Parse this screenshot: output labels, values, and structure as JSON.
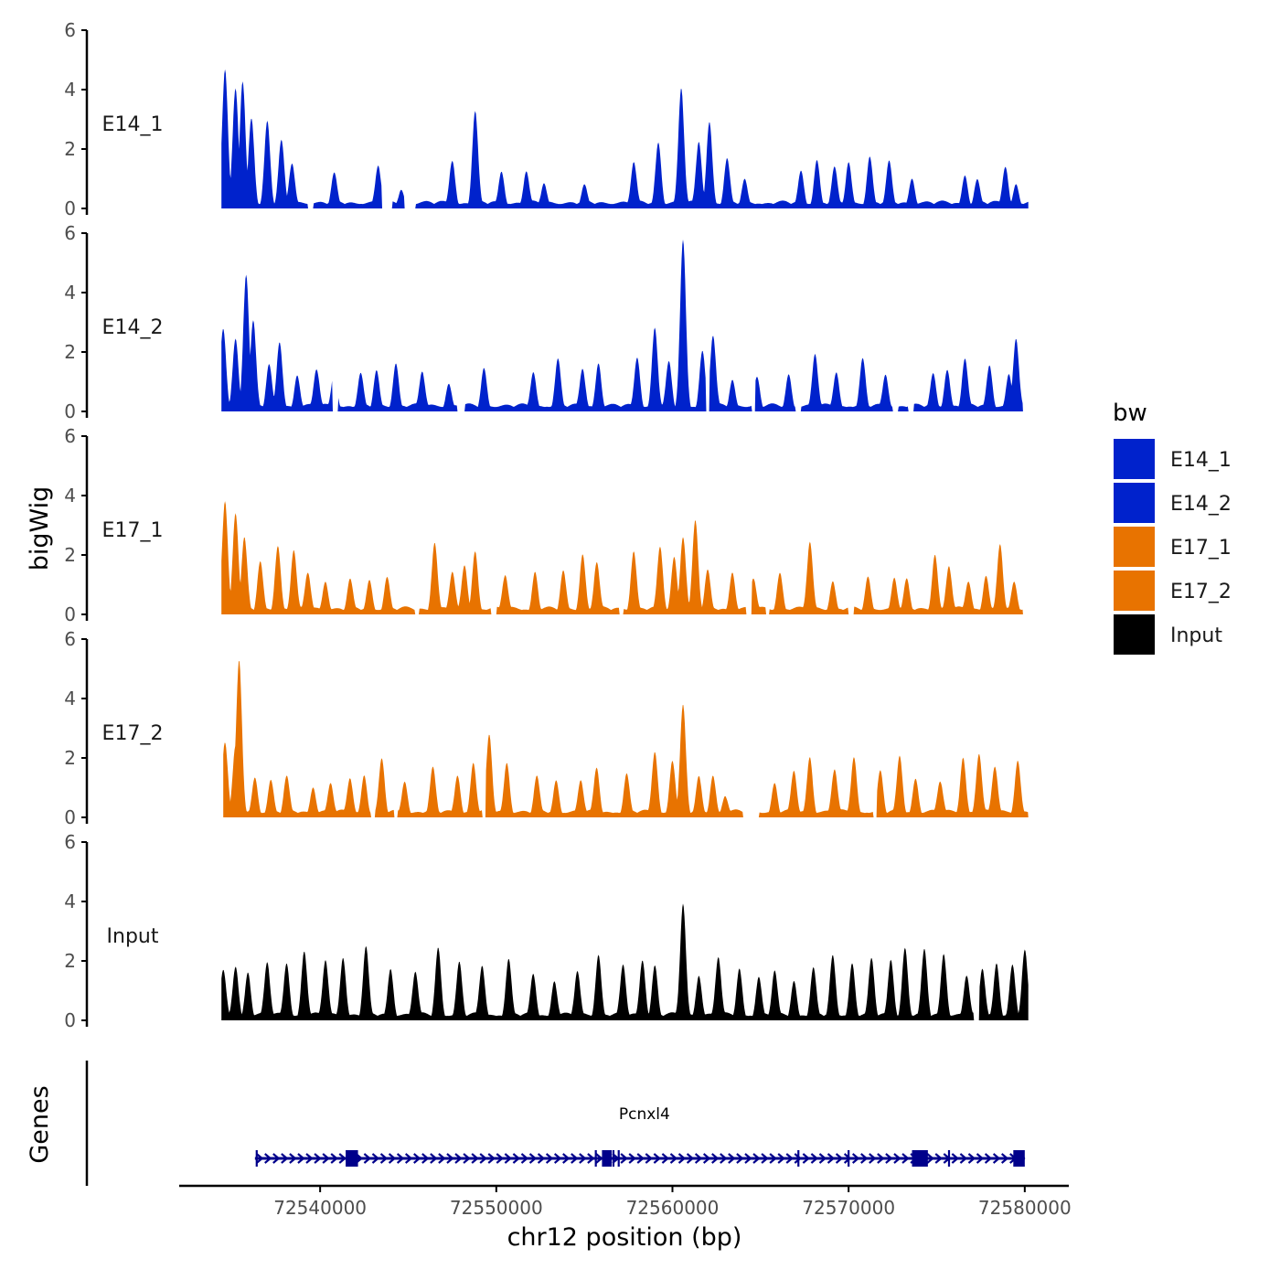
{
  "chart_data": {
    "type": "area",
    "genome": "chr12",
    "x_label": "chr12 position (bp)",
    "y_label": "bigWig",
    "genes_label": "Genes",
    "xlim": [
      72532000,
      72582500
    ],
    "x_ticks": [
      72540000,
      72550000,
      72560000,
      72570000,
      72580000
    ],
    "x_tick_labels": [
      "72540000",
      "72550000",
      "72560000",
      "72570000",
      "72580000"
    ],
    "y_range": [
      0,
      6
    ],
    "y_ticks": [
      0,
      2,
      4,
      6
    ],
    "y_tick_labels": [
      "0",
      "2",
      "4",
      "6"
    ],
    "legend": {
      "title": "bw",
      "entries": [
        {
          "label": "E14_1",
          "color": "#0022CC"
        },
        {
          "label": "E14_2",
          "color": "#0022CC"
        },
        {
          "label": "E17_1",
          "color": "#E87300"
        },
        {
          "label": "E17_2",
          "color": "#E87300"
        },
        {
          "label": "Input",
          "color": "#000000"
        }
      ]
    },
    "tracks": [
      {
        "name": "E14_1",
        "color": "#0022CC",
        "start": 72534400,
        "end": 72580200,
        "peaks": [
          [
            72534600,
            4.6
          ],
          [
            72535200,
            4.0
          ],
          [
            72535600,
            4.2
          ],
          [
            72536100,
            3.0
          ],
          [
            72537000,
            2.9
          ],
          [
            72537800,
            2.2
          ],
          [
            72538400,
            1.5
          ],
          [
            72540800,
            1.1
          ],
          [
            72543300,
            1.4
          ],
          [
            72544600,
            0.6
          ],
          [
            72547500,
            1.6
          ],
          [
            72548800,
            3.2
          ],
          [
            72550300,
            1.2
          ],
          [
            72551700,
            1.2
          ],
          [
            72552700,
            0.8
          ],
          [
            72555000,
            0.7
          ],
          [
            72557800,
            1.5
          ],
          [
            72559200,
            2.2
          ],
          [
            72560500,
            4.0
          ],
          [
            72561500,
            2.2
          ],
          [
            72562100,
            2.9
          ],
          [
            72563100,
            1.6
          ],
          [
            72564100,
            0.9
          ],
          [
            72567300,
            1.2
          ],
          [
            72568200,
            1.6
          ],
          [
            72569200,
            1.3
          ],
          [
            72570000,
            1.5
          ],
          [
            72571200,
            1.7
          ],
          [
            72572300,
            1.5
          ],
          [
            72573600,
            1.0
          ],
          [
            72576600,
            1.1
          ],
          [
            72577300,
            0.9
          ],
          [
            72578900,
            1.4
          ],
          [
            72579500,
            0.8
          ]
        ],
        "gaps": [
          [
            72539300,
            72539600
          ],
          [
            72543500,
            72544100
          ],
          [
            72544800,
            72545400
          ]
        ]
      },
      {
        "name": "E14_2",
        "color": "#0022CC",
        "start": 72534400,
        "end": 72579900,
        "peaks": [
          [
            72534500,
            2.7
          ],
          [
            72535200,
            2.4
          ],
          [
            72535800,
            4.6
          ],
          [
            72536200,
            3.0
          ],
          [
            72537100,
            1.5
          ],
          [
            72537700,
            2.3
          ],
          [
            72538700,
            1.2
          ],
          [
            72539800,
            1.4
          ],
          [
            72540800,
            1.3
          ],
          [
            72542300,
            1.2
          ],
          [
            72543200,
            1.3
          ],
          [
            72544300,
            1.6
          ],
          [
            72545800,
            1.3
          ],
          [
            72547300,
            0.9
          ],
          [
            72549300,
            1.4
          ],
          [
            72552100,
            1.3
          ],
          [
            72553500,
            1.7
          ],
          [
            72554900,
            1.4
          ],
          [
            72555800,
            1.6
          ],
          [
            72558000,
            1.8
          ],
          [
            72559000,
            2.8
          ],
          [
            72559800,
            1.6
          ],
          [
            72560600,
            5.7
          ],
          [
            72561700,
            2.0
          ],
          [
            72562300,
            2.5
          ],
          [
            72563400,
            1.0
          ],
          [
            72564800,
            1.1
          ],
          [
            72566600,
            1.2
          ],
          [
            72568100,
            1.9
          ],
          [
            72569300,
            1.3
          ],
          [
            72570800,
            1.7
          ],
          [
            72572100,
            1.2
          ],
          [
            72574800,
            1.2
          ],
          [
            72575600,
            1.4
          ],
          [
            72576600,
            1.7
          ],
          [
            72578000,
            1.5
          ],
          [
            72579100,
            1.2
          ],
          [
            72579500,
            2.4
          ]
        ],
        "gaps": [
          [
            72540700,
            72541000
          ],
          [
            72547800,
            72548200
          ],
          [
            72561900,
            72562100
          ],
          [
            72564500,
            72564700
          ],
          [
            72567000,
            72567300
          ],
          [
            72572500,
            72572800
          ],
          [
            72573400,
            72573700
          ]
        ]
      },
      {
        "name": "E17_1",
        "color": "#E87300",
        "start": 72534400,
        "end": 72579900,
        "peaks": [
          [
            72534600,
            3.8
          ],
          [
            72535200,
            3.4
          ],
          [
            72535700,
            2.5
          ],
          [
            72536600,
            1.7
          ],
          [
            72537600,
            2.3
          ],
          [
            72538500,
            2.1
          ],
          [
            72539300,
            1.4
          ],
          [
            72540300,
            1.1
          ],
          [
            72541700,
            1.1
          ],
          [
            72542800,
            1.1
          ],
          [
            72543800,
            1.2
          ],
          [
            72546500,
            2.4
          ],
          [
            72547500,
            1.4
          ],
          [
            72548200,
            1.6
          ],
          [
            72548800,
            2.1
          ],
          [
            72550500,
            1.3
          ],
          [
            72552200,
            1.4
          ],
          [
            72553800,
            1.4
          ],
          [
            72554900,
            2.0
          ],
          [
            72555700,
            1.7
          ],
          [
            72557800,
            2.1
          ],
          [
            72559300,
            2.2
          ],
          [
            72560100,
            1.9
          ],
          [
            72560600,
            2.6
          ],
          [
            72561300,
            3.1
          ],
          [
            72562000,
            1.4
          ],
          [
            72563400,
            1.4
          ],
          [
            72564600,
            1.2
          ],
          [
            72566100,
            1.4
          ],
          [
            72567800,
            2.4
          ],
          [
            72569100,
            1.1
          ],
          [
            72571100,
            1.2
          ],
          [
            72572600,
            1.2
          ],
          [
            72573300,
            1.1
          ],
          [
            72574900,
            2.0
          ],
          [
            72575700,
            1.6
          ],
          [
            72576800,
            1.1
          ],
          [
            72577800,
            1.3
          ],
          [
            72578600,
            2.3
          ],
          [
            72579400,
            1.0
          ]
        ],
        "gaps": [
          [
            72545400,
            72545600
          ],
          [
            72549700,
            72550000
          ],
          [
            72557000,
            72557200
          ],
          [
            72564200,
            72564500
          ],
          [
            72565300,
            72565500
          ],
          [
            72570000,
            72570300
          ]
        ]
      },
      {
        "name": "E17_2",
        "color": "#E87300",
        "start": 72534500,
        "end": 72580200,
        "peaks": [
          [
            72534600,
            2.5
          ],
          [
            72535200,
            2.3
          ],
          [
            72535400,
            5.2
          ],
          [
            72536300,
            1.3
          ],
          [
            72537200,
            1.2
          ],
          [
            72538100,
            1.3
          ],
          [
            72539600,
            1.0
          ],
          [
            72540600,
            1.1
          ],
          [
            72541700,
            1.3
          ],
          [
            72542500,
            1.4
          ],
          [
            72543500,
            1.9
          ],
          [
            72544800,
            1.2
          ],
          [
            72546400,
            1.6
          ],
          [
            72547800,
            1.4
          ],
          [
            72548700,
            1.8
          ],
          [
            72549600,
            2.7
          ],
          [
            72550600,
            1.8
          ],
          [
            72552300,
            1.3
          ],
          [
            72553400,
            1.2
          ],
          [
            72554800,
            1.2
          ],
          [
            72555700,
            1.6
          ],
          [
            72557400,
            1.4
          ],
          [
            72559000,
            2.2
          ],
          [
            72560000,
            1.9
          ],
          [
            72560600,
            3.7
          ],
          [
            72561500,
            1.3
          ],
          [
            72562300,
            1.4
          ],
          [
            72563000,
            0.7
          ],
          [
            72565800,
            1.1
          ],
          [
            72566900,
            1.5
          ],
          [
            72567800,
            2.0
          ],
          [
            72569200,
            1.6
          ],
          [
            72570300,
            2.0
          ],
          [
            72571800,
            1.5
          ],
          [
            72572900,
            2.0
          ],
          [
            72573800,
            1.3
          ],
          [
            72575200,
            1.2
          ],
          [
            72576500,
            2.0
          ],
          [
            72577400,
            2.1
          ],
          [
            72578300,
            1.7
          ],
          [
            72579600,
            1.9
          ]
        ],
        "gaps": [
          [
            72542900,
            72543100
          ],
          [
            72544200,
            72544400
          ],
          [
            72549200,
            72549400
          ],
          [
            72564000,
            72564900
          ],
          [
            72571400,
            72571600
          ]
        ]
      },
      {
        "name": "Input",
        "color": "#000000",
        "start": 72534400,
        "end": 72580200,
        "peaks": [
          [
            72534500,
            1.6
          ],
          [
            72535200,
            1.8
          ],
          [
            72535900,
            1.6
          ],
          [
            72537000,
            1.9
          ],
          [
            72538100,
            1.9
          ],
          [
            72539100,
            2.3
          ],
          [
            72540300,
            2.0
          ],
          [
            72541300,
            2.1
          ],
          [
            72542600,
            2.4
          ],
          [
            72544000,
            1.7
          ],
          [
            72545400,
            1.6
          ],
          [
            72546700,
            2.4
          ],
          [
            72547900,
            1.9
          ],
          [
            72549200,
            1.8
          ],
          [
            72550700,
            2.0
          ],
          [
            72552100,
            1.5
          ],
          [
            72553300,
            1.3
          ],
          [
            72554600,
            1.6
          ],
          [
            72555800,
            2.2
          ],
          [
            72557200,
            1.8
          ],
          [
            72558300,
            2.0
          ],
          [
            72559000,
            1.8
          ],
          [
            72560600,
            3.9
          ],
          [
            72561500,
            1.5
          ],
          [
            72562600,
            2.1
          ],
          [
            72563800,
            1.7
          ],
          [
            72564900,
            1.4
          ],
          [
            72565800,
            1.6
          ],
          [
            72566900,
            1.3
          ],
          [
            72568000,
            1.7
          ],
          [
            72569100,
            2.1
          ],
          [
            72570200,
            1.9
          ],
          [
            72571300,
            2.0
          ],
          [
            72572400,
            2.0
          ],
          [
            72573200,
            2.4
          ],
          [
            72574300,
            2.3
          ],
          [
            72575400,
            2.2
          ],
          [
            72576700,
            1.5
          ],
          [
            72577600,
            1.7
          ],
          [
            72578400,
            1.9
          ],
          [
            72579300,
            1.8
          ],
          [
            72580000,
            2.3
          ]
        ],
        "gaps": [
          [
            72577100,
            72577400
          ]
        ]
      }
    ],
    "genes": [
      {
        "name": "Pcnxl4",
        "color": "#00008B",
        "strand": "+",
        "start": 72536300,
        "end": 72580000,
        "exons": [
          [
            72541450,
            72542150
          ],
          [
            72556000,
            72556550
          ],
          [
            72573600,
            72574500
          ],
          [
            72579350,
            72580000
          ]
        ],
        "small_features": [
          72536400,
          72555650,
          72556650,
          72556950,
          72567150,
          72570000,
          72575700
        ]
      }
    ]
  }
}
